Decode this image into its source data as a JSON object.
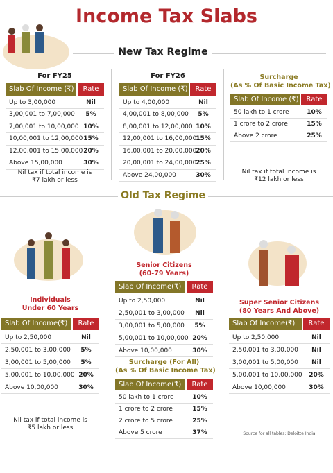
{
  "title": "Income Tax Slabs",
  "new_regime": {
    "heading": "New Tax Regime",
    "fy25": {
      "title": [
        "For FY25"
      ],
      "header": [
        "Slab Of Income (₹)",
        "Rate"
      ],
      "rows": [
        [
          "Up to 3,00,000",
          "Nil"
        ],
        [
          "3,00,001 to 7,00,000",
          "5%"
        ],
        [
          "7,00,001 to 10,00,000",
          "10%"
        ],
        [
          "10,00,001 to 12,00,000",
          "15%"
        ],
        [
          "12,00,001 to 15,00,000",
          "20%"
        ],
        [
          "Above 15,00,000",
          "30%"
        ]
      ],
      "note": [
        "Nil tax if total income is",
        "₹7 lakh or less"
      ]
    },
    "fy26": {
      "title": [
        "For FY26"
      ],
      "header": [
        "Slab Of Income (₹)",
        "Rate"
      ],
      "rows": [
        [
          "Up to 4,00,000",
          "Nil"
        ],
        [
          "4,00,001 to 8,00,000",
          "5%"
        ],
        [
          "8,00,001 to 12,00,000",
          "10%"
        ],
        [
          "12,00,001 to 16,00,000",
          "15%"
        ],
        [
          "16,00,001 to 20,00,000",
          "20%"
        ],
        [
          "20,00,001 to 24,00,000",
          "25%"
        ],
        [
          "Above 24,00,000",
          "30%"
        ]
      ]
    },
    "surcharge": {
      "title": [
        "Surcharge",
        "(As % Of Basic Income Tax)"
      ],
      "header": [
        "Slab Of Income (₹)",
        "Rate"
      ],
      "rows": [
        [
          "50 lakh to 1 crore",
          "10%"
        ],
        [
          "1 crore to 2 crore",
          "15%"
        ],
        [
          "Above 2 crore",
          "25%"
        ]
      ],
      "note": [
        "Nil tax if total income is",
        "₹12 lakh or less"
      ]
    }
  },
  "old_regime": {
    "heading": "Old Tax Regime",
    "individuals": {
      "title": [
        "Individuals",
        "Under 60 Years"
      ],
      "header": [
        "Slab Of Income(₹)",
        "Rate"
      ],
      "rows": [
        [
          "Up to 2,50,000",
          "Nil"
        ],
        [
          "2,50,001 to 3,00,000",
          "5%"
        ],
        [
          "3,00,001 to 5,00,000",
          "5%"
        ],
        [
          "5,00,001 to 10,00,000",
          "20%"
        ],
        [
          "Above 10,00,000",
          "30%"
        ]
      ],
      "note": [
        "Nil tax if total income is",
        "₹5 lakh or less"
      ]
    },
    "seniors": {
      "title": [
        "Senior Citizens",
        "(60-79 Years)"
      ],
      "header": [
        "Slab Of Income(₹)",
        "Rate"
      ],
      "rows": [
        [
          "Up to 2,50,000",
          "Nil"
        ],
        [
          "2,50,001 to 3,00,000",
          "Nil"
        ],
        [
          "3,00,001 to 5,00,000",
          "5%"
        ],
        [
          "5,00,001 to 10,00,000",
          "20%"
        ],
        [
          "Above 10,00,000",
          "30%"
        ]
      ]
    },
    "surcharge_all": {
      "title": [
        "Surcharge (For All)",
        "(As % Of Basic Income Tax)"
      ],
      "header": [
        "Slab Of Income(₹)",
        "Rate"
      ],
      "rows": [
        [
          "50 lakh to 1 crore",
          "10%"
        ],
        [
          "1 crore to 2 crore",
          "15%"
        ],
        [
          "2 crore to 5 crore",
          "25%"
        ],
        [
          "Above 5 crore",
          "37%"
        ]
      ]
    },
    "super_seniors": {
      "title": [
        "Super Senior Citizens",
        "(80 Years And Above)"
      ],
      "header": [
        "Slab Of Income(₹)",
        "Rate"
      ],
      "rows": [
        [
          "Up to 2,50,000",
          "Nil"
        ],
        [
          "2,50,001 to 3,00,000",
          "Nil"
        ],
        [
          "3,00,001 to 5,00,000",
          "Nil"
        ],
        [
          "5,00,001 to 10,00,000",
          "20%"
        ],
        [
          "Above 10,00,000",
          "30%"
        ]
      ]
    }
  },
  "source": "Source for all tables: Deloitte India"
}
